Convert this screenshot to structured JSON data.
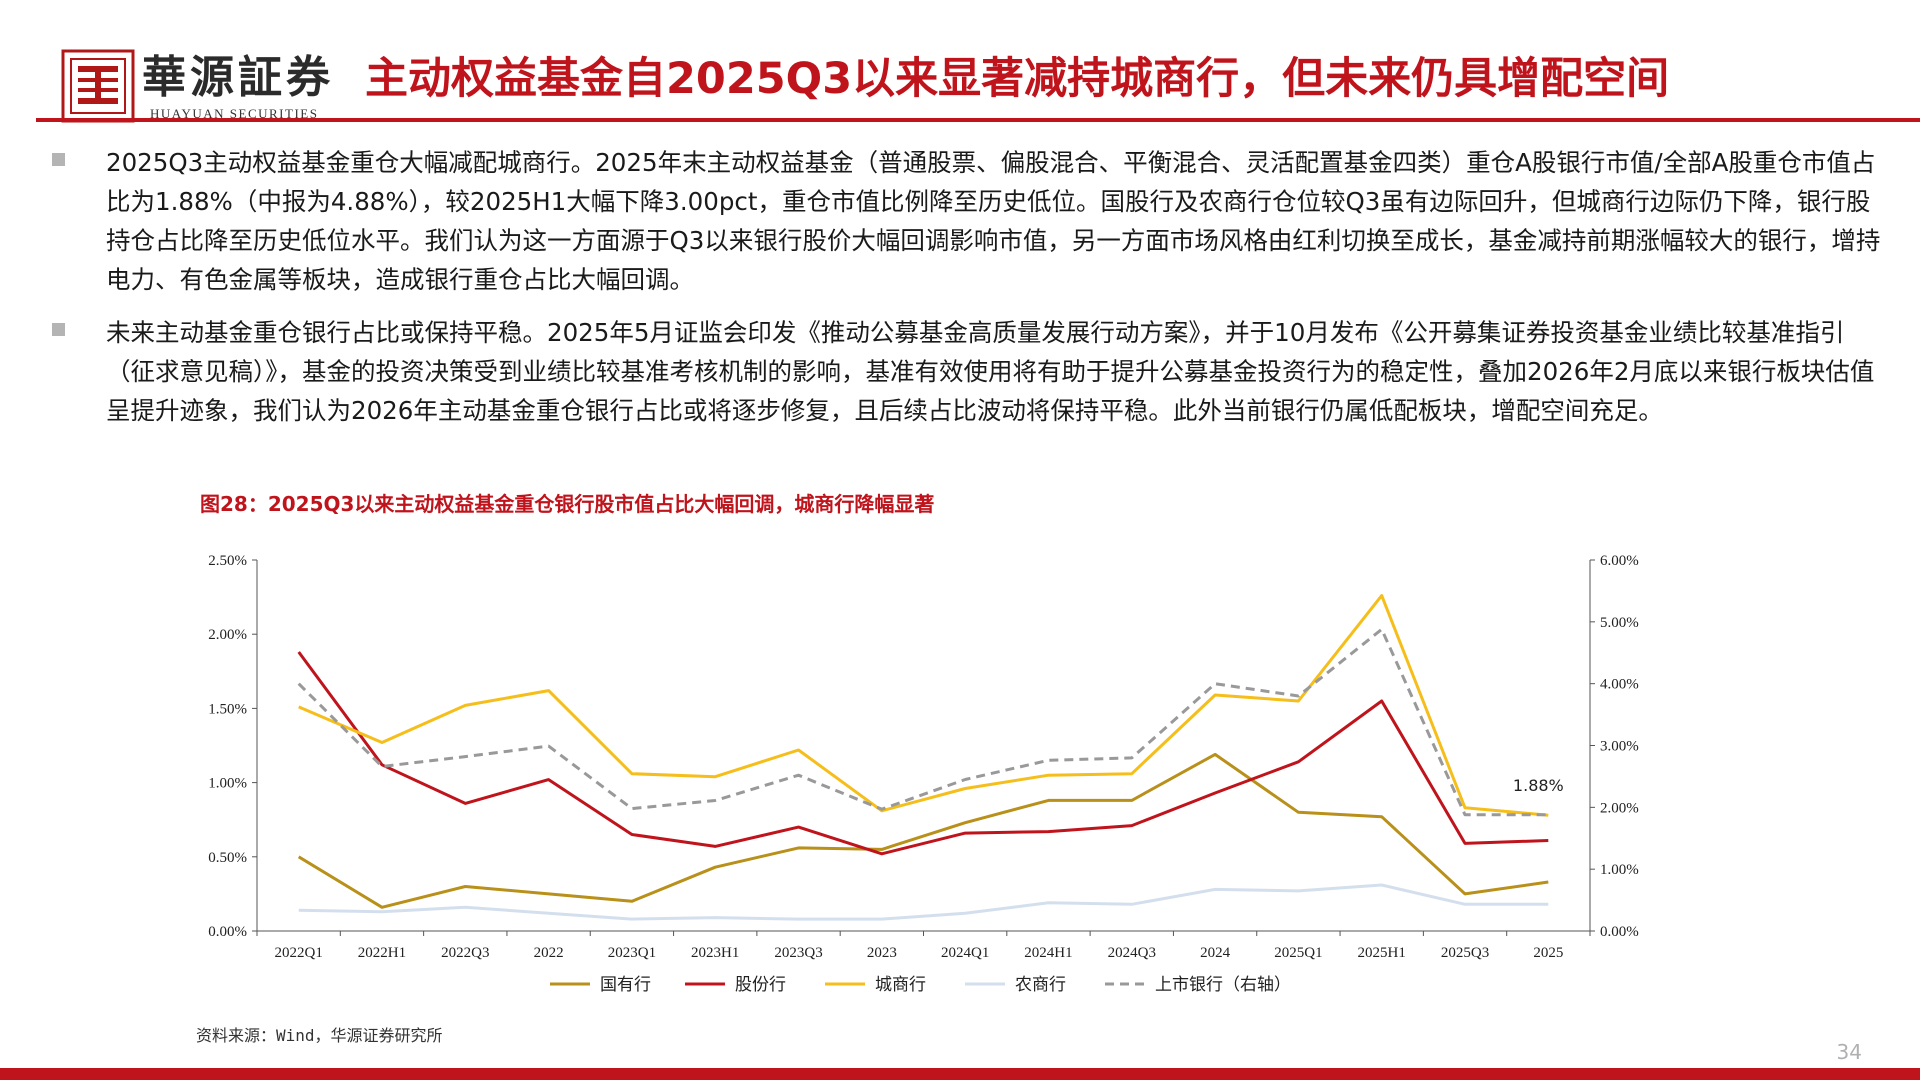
{
  "header": {
    "brand_cn": "華源証券",
    "brand_en": "HUAYUAN SECURITIES",
    "title": "主动权益基金自2025Q3以来显著减持城商行，但未来仍具增配空间"
  },
  "bullets": [
    "2025Q3主动权益基金重仓大幅减配城商行。2025年末主动权益基金（普通股票、偏股混合、平衡混合、灵活配置基金四类）重仓A股银行市值/全部A股重仓市值占比为1.88%（中报为4.88%），较2025H1大幅下降3.00pct，重仓市值比例降至历史低位。国股行及农商行仓位较Q3虽有边际回升，但城商行边际仍下降，银行股持仓占比降至历史低位水平。我们认为这一方面源于Q3以来银行股价大幅回调影响市值，另一方面市场风格由红利切换至成长，基金减持前期涨幅较大的银行，增持电力、有色金属等板块，造成银行重仓占比大幅回调。",
    "未来主动基金重仓银行占比或保持平稳。2025年5月证监会印发《推动公募基金高质量发展行动方案》，并于10月发布《公开募集证券投资基金业绩比较基准指引（征求意见稿）》，基金的投资决策受到业绩比较基准考核机制的影响，基准有效使用将有助于提升公募基金投资行为的稳定性，叠加2026年2月底以来银行板块估值呈提升迹象，我们认为2026年主动基金重仓银行占比或将逐步修复，且后续占比波动将保持平稳。此外当前银行仍属低配板块，增配空间充足。"
  ],
  "figure_title": "图28：2025Q3以来主动权益基金重仓银行股市值占比大幅回调，城商行降幅显著",
  "chart_data": {
    "type": "line",
    "categories": [
      "2022Q1",
      "2022H1",
      "2022Q3",
      "2022",
      "2023Q1",
      "2023H1",
      "2023Q3",
      "2023",
      "2024Q1",
      "2024H1",
      "2024Q3",
      "2024",
      "2025Q1",
      "2025H1",
      "2025Q3",
      "2025"
    ],
    "y_left": {
      "min": 0,
      "max": 0.025,
      "ticks": [
        "0.00%",
        "0.50%",
        "1.00%",
        "1.50%",
        "2.00%",
        "2.50%"
      ]
    },
    "y_right": {
      "min": 0,
      "max": 0.06,
      "ticks": [
        "0.00%",
        "1.00%",
        "2.00%",
        "3.00%",
        "4.00%",
        "5.00%",
        "6.00%"
      ]
    },
    "series": [
      {
        "name": "国有行",
        "axis": "left",
        "color": "#b8901a",
        "dash": false,
        "values": [
          0.005,
          0.0016,
          0.003,
          0.0025,
          0.002,
          0.0043,
          0.0056,
          0.0055,
          0.0073,
          0.0088,
          0.0088,
          0.0119,
          0.008,
          0.0077,
          0.0025,
          0.0033
        ]
      },
      {
        "name": "股份行",
        "axis": "left",
        "color": "#c0141c",
        "dash": false,
        "values": [
          0.0188,
          0.0112,
          0.0086,
          0.0102,
          0.0065,
          0.0057,
          0.007,
          0.0052,
          0.0066,
          0.0067,
          0.0071,
          0.0093,
          0.0114,
          0.0155,
          0.0059,
          0.0061
        ]
      },
      {
        "name": "城商行",
        "axis": "left",
        "color": "#f5be1a",
        "dash": false,
        "values": [
          0.0151,
          0.0127,
          0.0152,
          0.0162,
          0.0106,
          0.0104,
          0.0122,
          0.0081,
          0.0096,
          0.0105,
          0.0106,
          0.0159,
          0.0155,
          0.0226,
          0.0083,
          0.0078
        ]
      },
      {
        "name": "农商行",
        "axis": "left",
        "color": "#d4dfee",
        "dash": false,
        "values": [
          0.0014,
          0.0013,
          0.0016,
          0.0012,
          0.0008,
          0.0009,
          0.0008,
          0.0008,
          0.0012,
          0.0019,
          0.0018,
          0.0028,
          0.0027,
          0.0031,
          0.0018,
          0.0018
        ]
      },
      {
        "name": "上市银行（右轴）",
        "axis": "right",
        "color": "#999999",
        "dash": true,
        "values": [
          0.04,
          0.0266,
          0.0282,
          0.0299,
          0.0198,
          0.0211,
          0.0252,
          0.0197,
          0.0245,
          0.0276,
          0.028,
          0.04,
          0.038,
          0.0488,
          0.0188,
          0.0188
        ]
      }
    ],
    "annotation": {
      "text": "1.88%",
      "series": "上市银行（右轴）",
      "category": "2025"
    },
    "legend_position": "bottom",
    "grid": false
  },
  "source": "资料来源：Wind，华源证券研究所",
  "page_number": "34"
}
